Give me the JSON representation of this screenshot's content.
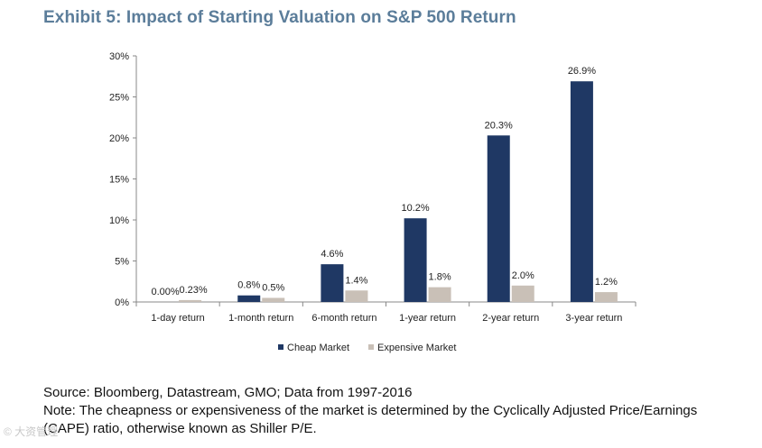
{
  "header": {
    "title": "Exhibit 5: Impact of Starting Valuation on S&P 500 Return"
  },
  "chart_data": {
    "type": "bar",
    "title": "Exhibit 5: Impact of Starting Valuation on S&P 500 Return",
    "categories": [
      "1-day return",
      "1-month return",
      "6-month return",
      "1-year return",
      "2-year return",
      "3-year return"
    ],
    "series": [
      {
        "name": "Cheap Market",
        "color": "#1f3864",
        "values": [
          0.0,
          0.8,
          4.6,
          10.2,
          20.3,
          26.9
        ],
        "labels": [
          "0.00%",
          "0.8%",
          "4.6%",
          "10.2%",
          "20.3%",
          "26.9%"
        ]
      },
      {
        "name": "Expensive Market",
        "color": "#c9c0b7",
        "values": [
          0.23,
          0.5,
          1.4,
          1.8,
          2.0,
          1.2
        ],
        "labels": [
          "0.23%",
          "0.5%",
          "1.4%",
          "1.8%",
          "2.0%",
          "1.2%"
        ]
      }
    ],
    "xlabel": "",
    "ylabel": "",
    "ylim": [
      0,
      30
    ],
    "yticks": [
      0,
      5,
      10,
      15,
      20,
      25,
      30
    ],
    "ytick_labels": [
      "0%",
      "5%",
      "10%",
      "15%",
      "20%",
      "25%",
      "30%"
    ],
    "grid": false,
    "legend_position": "bottom-center"
  },
  "footer": {
    "source": "Source:  Bloomberg, Datastream, GMO; Data from 1997-2016",
    "note_line1": "Note: The cheapness or expensiveness of the market is determined by the Cyclically Adjusted Price/Earnings",
    "note_line2": "(CAPE) ratio, otherwise known as Shiller P/E.",
    "watermark": "© 大资管理"
  }
}
